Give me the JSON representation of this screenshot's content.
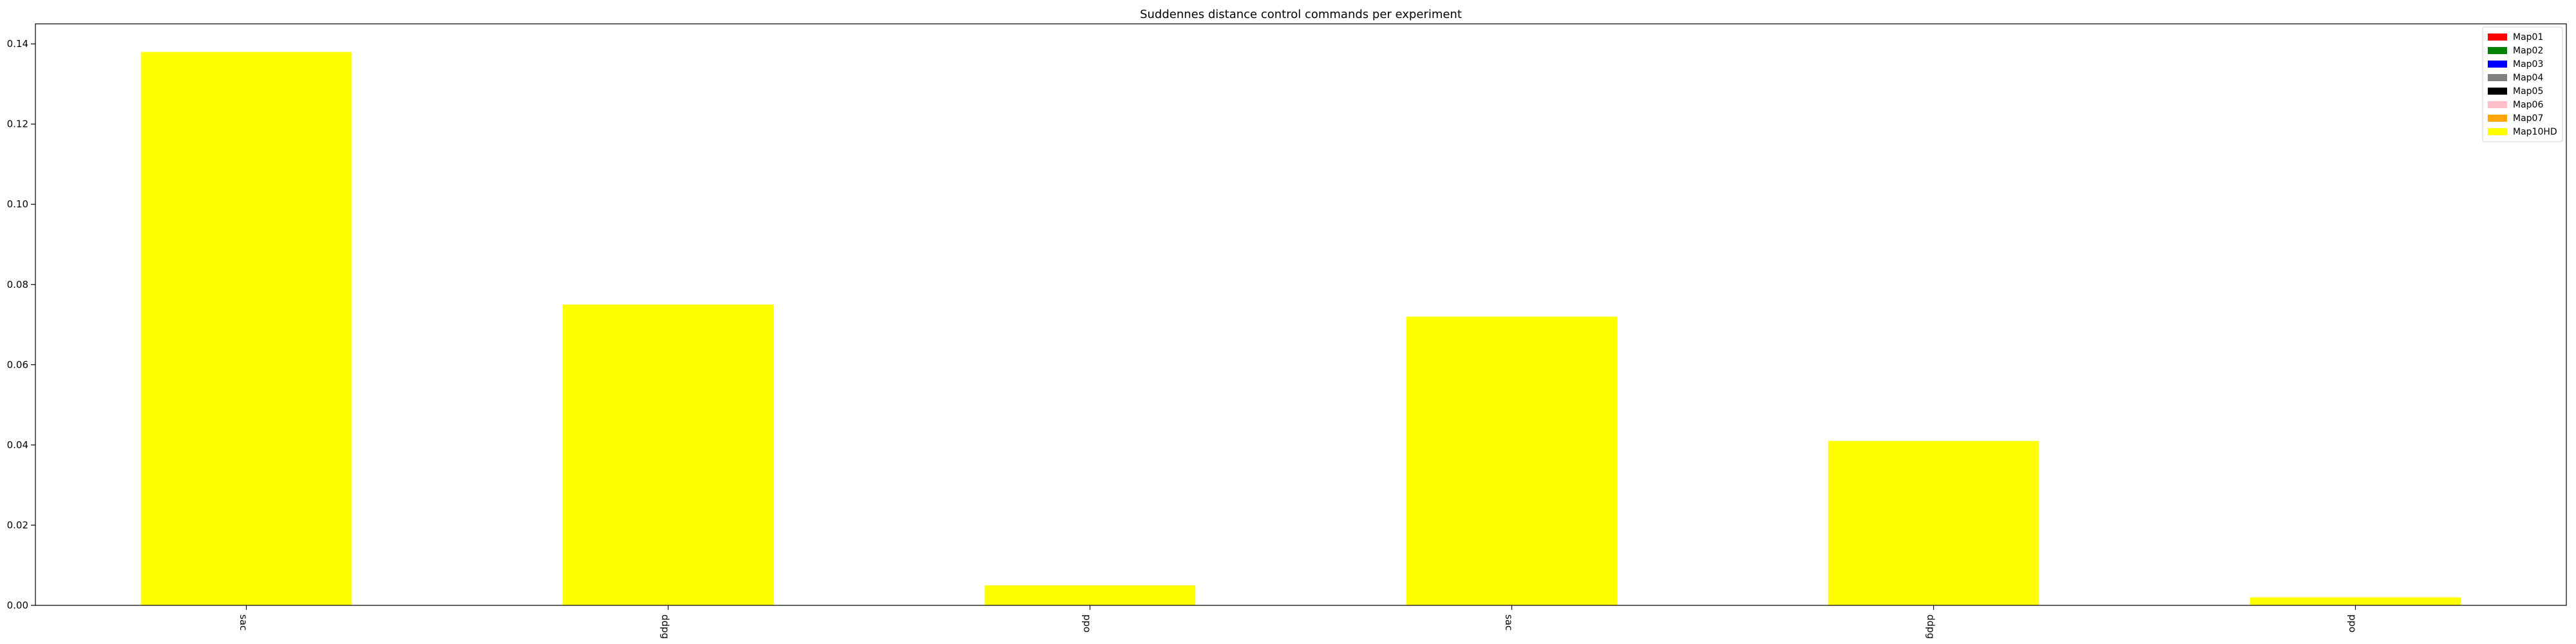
{
  "chart_data": {
    "type": "bar",
    "title": "Suddennes distance control commands per experiment",
    "xlabel": "",
    "ylabel": "",
    "categories": [
      "sac",
      "ddpg",
      "ppo",
      "sac",
      "ddpg",
      "ppo"
    ],
    "values": [
      0.138,
      0.075,
      0.005,
      0.072,
      0.041,
      0.002
    ],
    "ylim": [
      0,
      0.145
    ],
    "yticks": [
      0.0,
      0.02,
      0.04,
      0.06,
      0.08,
      0.1,
      0.12,
      0.14
    ],
    "ytick_labels": [
      "0.00",
      "0.02",
      "0.04",
      "0.06",
      "0.08",
      "0.10",
      "0.12",
      "0.14"
    ],
    "bar_color": "#ffff00",
    "grid": false,
    "legend_position": "top-right",
    "legend": [
      {
        "label": "Map01",
        "color": "#ff0000"
      },
      {
        "label": "Map02",
        "color": "#008000"
      },
      {
        "label": "Map03",
        "color": "#0000ff"
      },
      {
        "label": "Map04",
        "color": "#808080"
      },
      {
        "label": "Map05",
        "color": "#000000"
      },
      {
        "label": "Map06",
        "color": "#ffc0cb"
      },
      {
        "label": "Map07",
        "color": "#ffa500"
      },
      {
        "label": "Map10HD",
        "color": "#ffff00"
      }
    ]
  }
}
